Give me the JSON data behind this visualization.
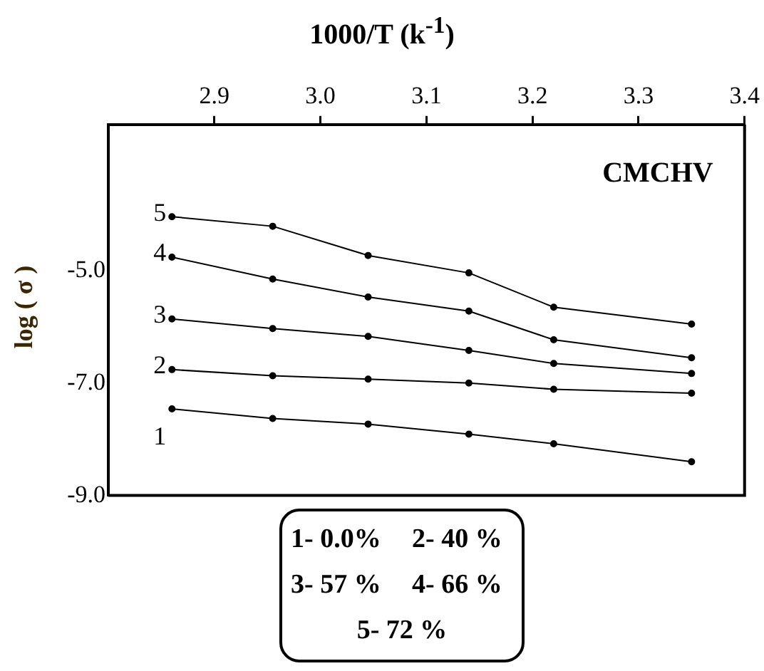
{
  "chart_data": {
    "type": "line",
    "title": "CMCHV",
    "xlabel": "1000/T (k$^{-1}$)",
    "ylabel": "log ( σ )",
    "x": [
      2.86,
      2.955,
      3.045,
      3.14,
      3.22,
      3.35
    ],
    "series": [
      {
        "name": "1",
        "color": "#000000",
        "values": [
          -7.46,
          -7.63,
          -7.73,
          -7.91,
          -8.08,
          -8.4
        ]
      },
      {
        "name": "2",
        "color": "#000000",
        "values": [
          -6.76,
          -6.87,
          -6.93,
          -7.0,
          -7.11,
          -7.18
        ]
      },
      {
        "name": "3",
        "color": "#000000",
        "values": [
          -5.86,
          -6.03,
          -6.17,
          -6.42,
          -6.65,
          -6.83
        ]
      },
      {
        "name": "4",
        "color": "#000000",
        "values": [
          -4.76,
          -5.15,
          -5.47,
          -5.72,
          -6.23,
          -6.55
        ]
      },
      {
        "name": "5",
        "color": "#000000",
        "values": [
          -4.04,
          -4.21,
          -4.73,
          -5.04,
          -5.65,
          -5.95
        ]
      }
    ],
    "xlim": [
      2.8,
      3.4
    ],
    "xticks": [
      {
        "value": 2.9,
        "label": "2.9"
      },
      {
        "value": 3.0,
        "label": "3.0"
      },
      {
        "value": 3.1,
        "label": "3.1"
      },
      {
        "value": 3.2,
        "label": "3.2"
      },
      {
        "value": 3.3,
        "label": "3.3"
      },
      {
        "value": 3.4,
        "label": "3.4"
      }
    ],
    "ylim": [
      -9.0,
      -2.4
    ],
    "yticks": [
      {
        "value": -9,
        "label": "-9.0"
      },
      {
        "value": -7,
        "label": "-7.0"
      },
      {
        "value": -5,
        "label": "-5.0"
      }
    ],
    "marker": "circle",
    "line_style": "solid",
    "grid": false,
    "legend": false,
    "annotations": [
      "1- 0.0%",
      "2- 40 %",
      "3- 57 %",
      "4- 66 %",
      "5- 72 %"
    ]
  }
}
